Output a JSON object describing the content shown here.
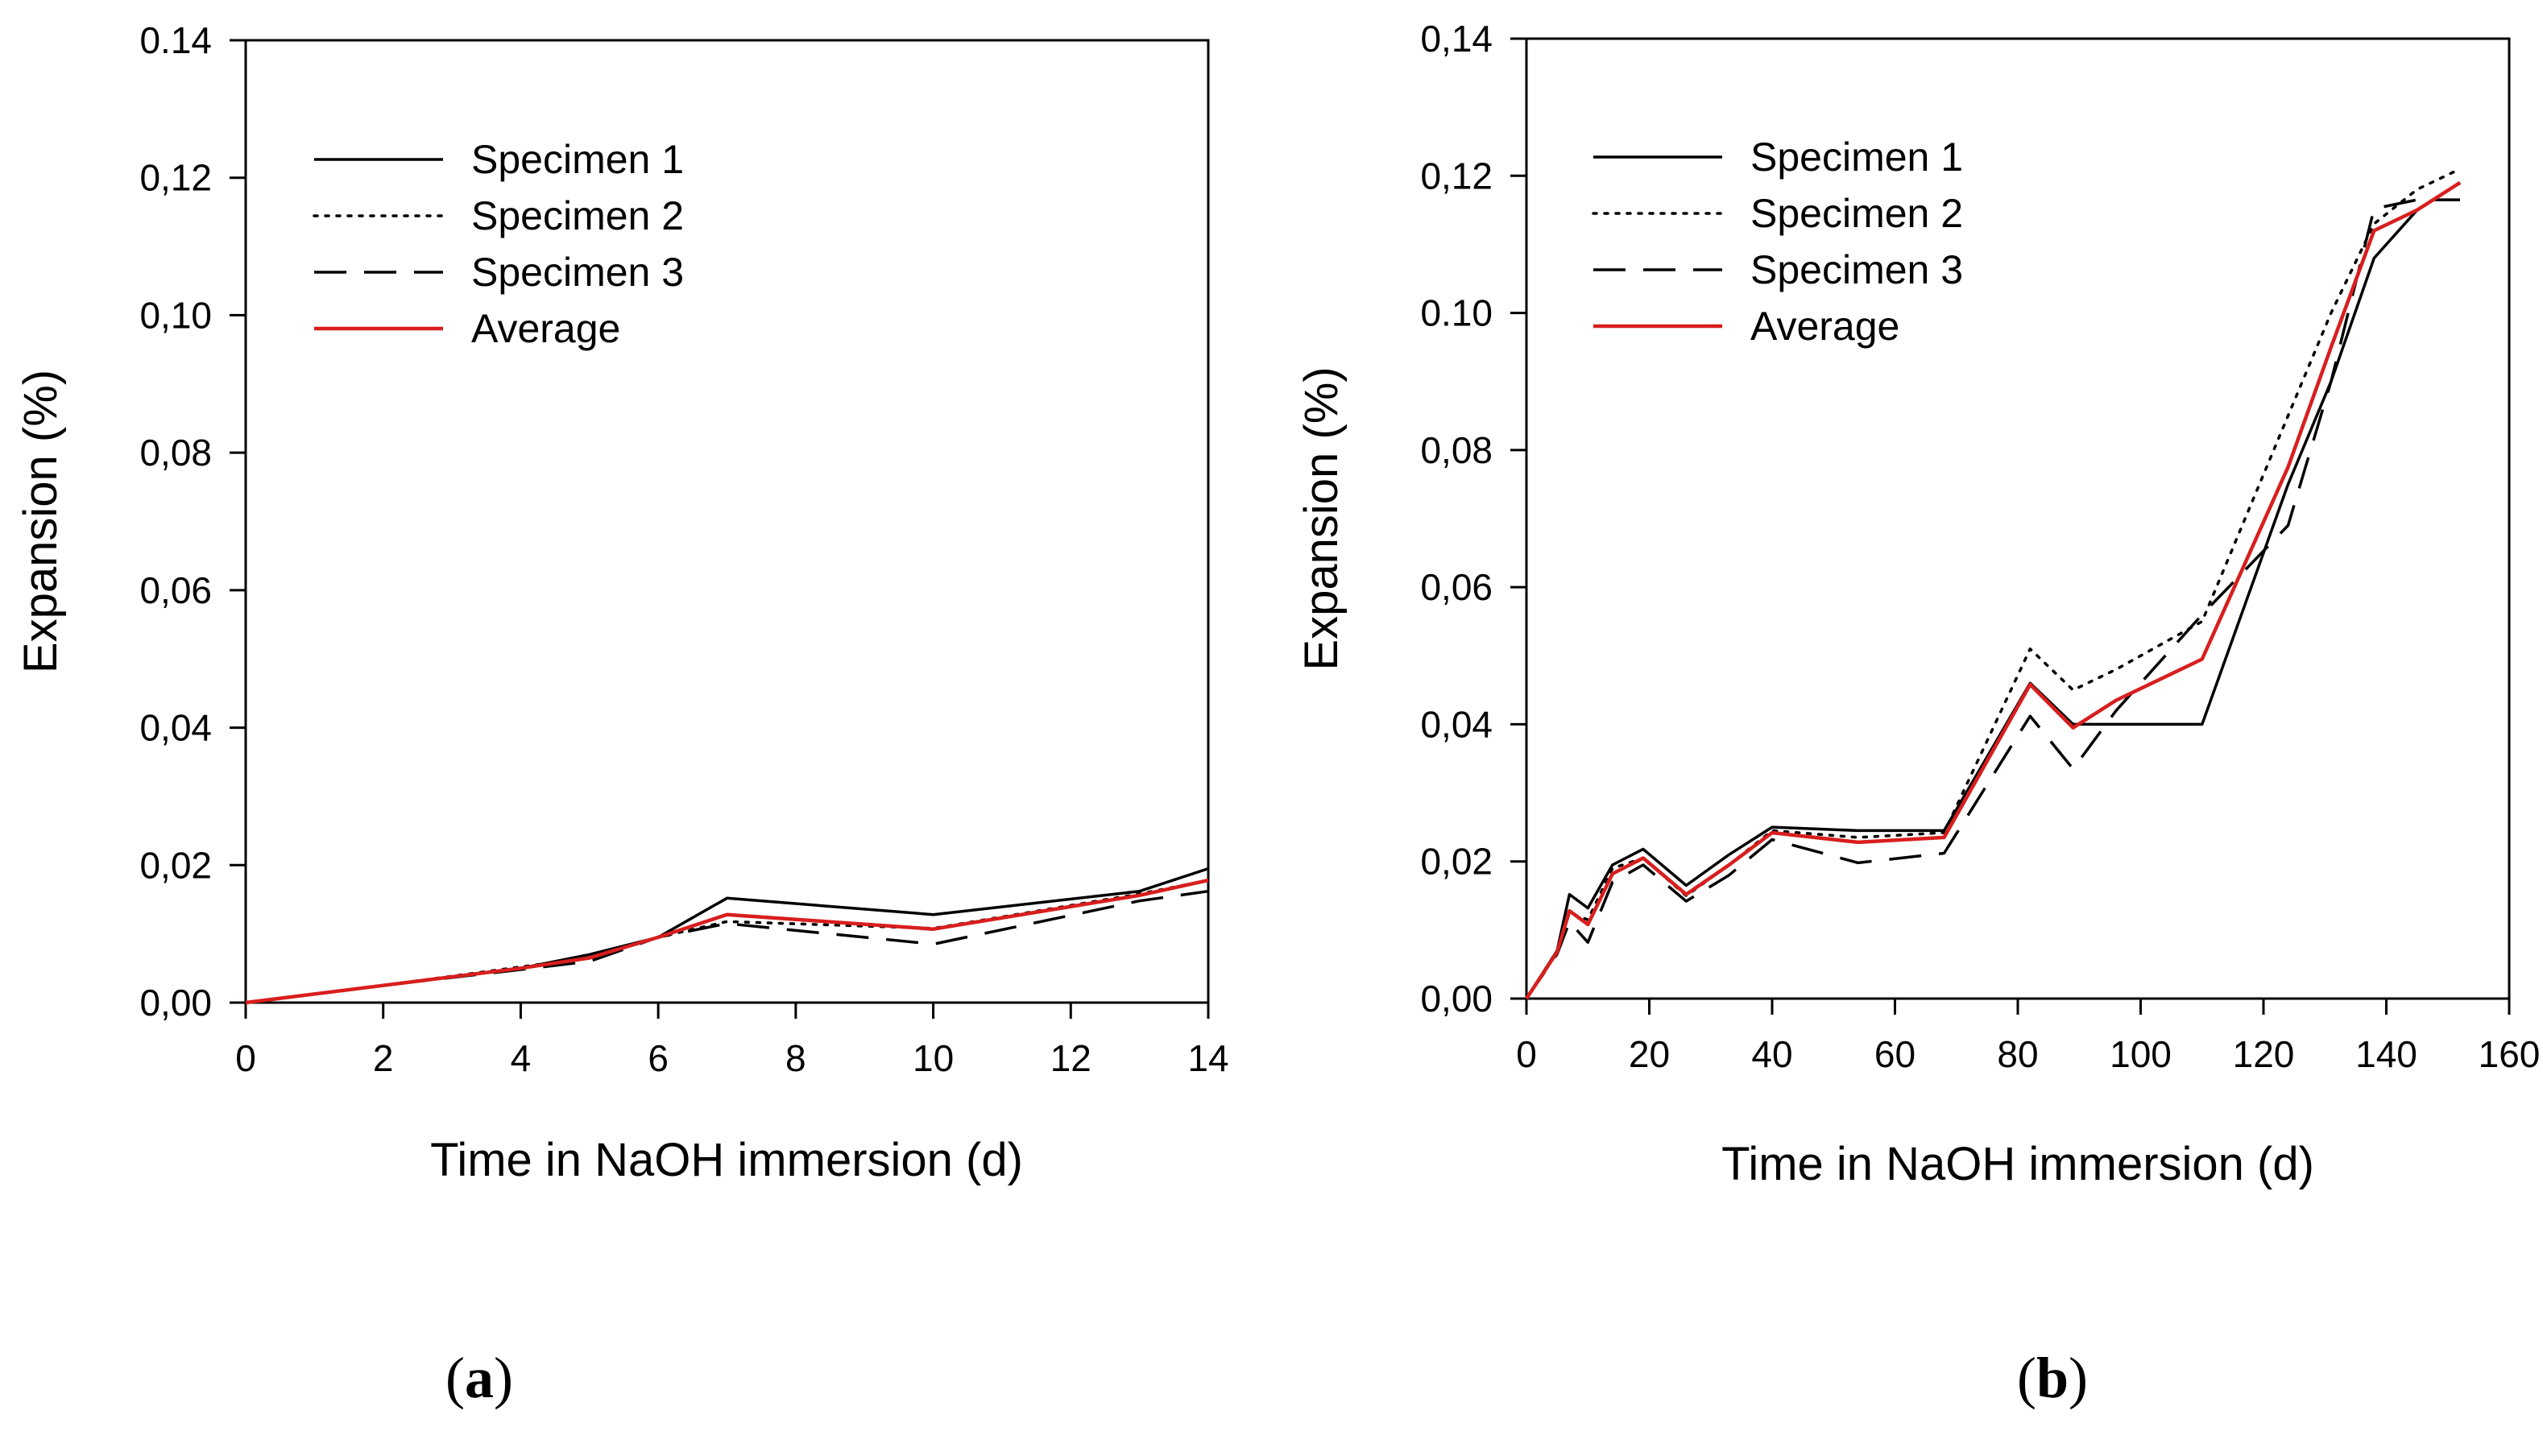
{
  "chart_data": [
    {
      "type": "line",
      "panel_label_open": "(",
      "panel_label": "a",
      "panel_label_close": ")",
      "xlabel": "Time in NaOH immersion (d)",
      "ylabel": "Expansion (%)",
      "xlim": [
        0,
        14
      ],
      "ylim": [
        0,
        0.14
      ],
      "xticks": [
        "0",
        "2",
        "4",
        "6",
        "8",
        "10",
        "12",
        "14"
      ],
      "xtick_values": [
        0,
        2,
        4,
        6,
        8,
        10,
        12,
        14
      ],
      "yticks": [
        "0,00",
        "0,02",
        "0,04",
        "0,06",
        "0,08",
        "0,10",
        "0,12",
        "0.14"
      ],
      "ytick_values": [
        0,
        0.02,
        0.04,
        0.06,
        0.08,
        0.1,
        0.12,
        0.14
      ],
      "legend": "top-left",
      "series": [
        {
          "name": "Specimen 1",
          "style": "solid",
          "color": "#000000",
          "x": [
            0,
            2,
            4,
            5,
            6,
            7,
            10,
            13,
            14
          ],
          "y": [
            0,
            0.0025,
            0.005,
            0.007,
            0.0095,
            0.0152,
            0.0128,
            0.0162,
            0.0195
          ]
        },
        {
          "name": "Specimen 2",
          "style": "dotted",
          "color": "#000000",
          "x": [
            0,
            2,
            4,
            5,
            6,
            7,
            10,
            13,
            14
          ],
          "y": [
            0,
            0.0025,
            0.0052,
            0.0065,
            0.0095,
            0.0118,
            0.0108,
            0.0158,
            0.0178
          ]
        },
        {
          "name": "Specimen 3",
          "style": "dashed",
          "color": "#000000",
          "x": [
            0,
            2,
            4,
            5,
            6,
            7,
            10,
            13,
            14
          ],
          "y": [
            0,
            0.0025,
            0.0048,
            0.006,
            0.0095,
            0.0115,
            0.0085,
            0.0148,
            0.0162
          ]
        },
        {
          "name": "Average",
          "style": "solid",
          "color": "#d81e1e",
          "x": [
            0,
            2,
            4,
            5,
            6,
            7,
            10,
            13,
            14
          ],
          "y": [
            0,
            0.0025,
            0.005,
            0.0065,
            0.0095,
            0.0128,
            0.0107,
            0.0156,
            0.0178
          ]
        }
      ]
    },
    {
      "type": "line",
      "panel_label_open": "(",
      "panel_label": "b",
      "panel_label_close": ")",
      "xlabel": "Time in NaOH immersion (d)",
      "ylabel": "Expansion (%)",
      "xlim": [
        0,
        160
      ],
      "ylim": [
        0,
        0.14
      ],
      "xticks": [
        "0",
        "20",
        "40",
        "60",
        "80",
        "100",
        "120",
        "140",
        "160"
      ],
      "xtick_values": [
        0,
        20,
        40,
        60,
        80,
        100,
        120,
        140,
        160
      ],
      "yticks": [
        "0,00",
        "0,02",
        "0,04",
        "0,06",
        "0,08",
        "0.10",
        "0,12",
        "0,14"
      ],
      "ytick_values": [
        0,
        0.02,
        0.04,
        0.06,
        0.08,
        0.1,
        0.12,
        0.14
      ],
      "legend": "top-left",
      "series": [
        {
          "name": "Specimen 1",
          "style": "solid",
          "color": "#000000",
          "x": [
            0,
            5,
            7,
            10,
            14,
            19,
            26,
            33,
            40,
            54,
            68,
            82,
            89,
            96,
            110,
            124,
            131,
            138,
            145,
            152
          ],
          "y": [
            0,
            0.007,
            0.0152,
            0.0132,
            0.0195,
            0.0218,
            0.0165,
            0.021,
            0.025,
            0.0245,
            0.0245,
            0.046,
            0.04,
            0.04,
            0.04,
            0.075,
            0.09,
            0.108,
            0.115,
            0.119
          ]
        },
        {
          "name": "Specimen 2",
          "style": "dotted",
          "color": "#000000",
          "x": [
            0,
            5,
            7,
            10,
            14,
            19,
            26,
            33,
            40,
            54,
            68,
            82,
            89,
            96,
            110,
            124,
            131,
            138,
            145,
            152
          ],
          "y": [
            0,
            0.007,
            0.0125,
            0.0115,
            0.019,
            0.0205,
            0.015,
            0.0195,
            0.0245,
            0.0235,
            0.0242,
            0.051,
            0.045,
            0.048,
            0.055,
            0.085,
            0.1,
            0.113,
            0.118,
            0.121
          ]
        },
        {
          "name": "Specimen 3",
          "style": "dashed",
          "color": "#000000",
          "x": [
            0,
            5,
            7,
            10,
            14,
            19,
            26,
            33,
            40,
            54,
            68,
            82,
            89,
            96,
            110,
            124,
            131,
            138,
            145,
            152
          ],
          "y": [
            0,
            0.0065,
            0.0112,
            0.0082,
            0.017,
            0.0195,
            0.0142,
            0.018,
            0.0232,
            0.0198,
            0.0212,
            0.0412,
            0.0335,
            0.042,
            0.056,
            0.069,
            0.09,
            0.1152,
            0.1165,
            0.1165
          ]
        },
        {
          "name": "Average",
          "style": "solid",
          "color": "#d81e1e",
          "x": [
            0,
            5,
            7,
            10,
            14,
            19,
            26,
            33,
            40,
            54,
            68,
            82,
            89,
            96,
            110,
            124,
            131,
            138,
            145,
            152
          ],
          "y": [
            0,
            0.0068,
            0.0128,
            0.0108,
            0.0182,
            0.0205,
            0.0152,
            0.0195,
            0.0242,
            0.0228,
            0.0235,
            0.0458,
            0.0395,
            0.0435,
            0.0495,
            0.0775,
            0.095,
            0.112,
            0.115,
            0.119
          ]
        }
      ]
    }
  ]
}
